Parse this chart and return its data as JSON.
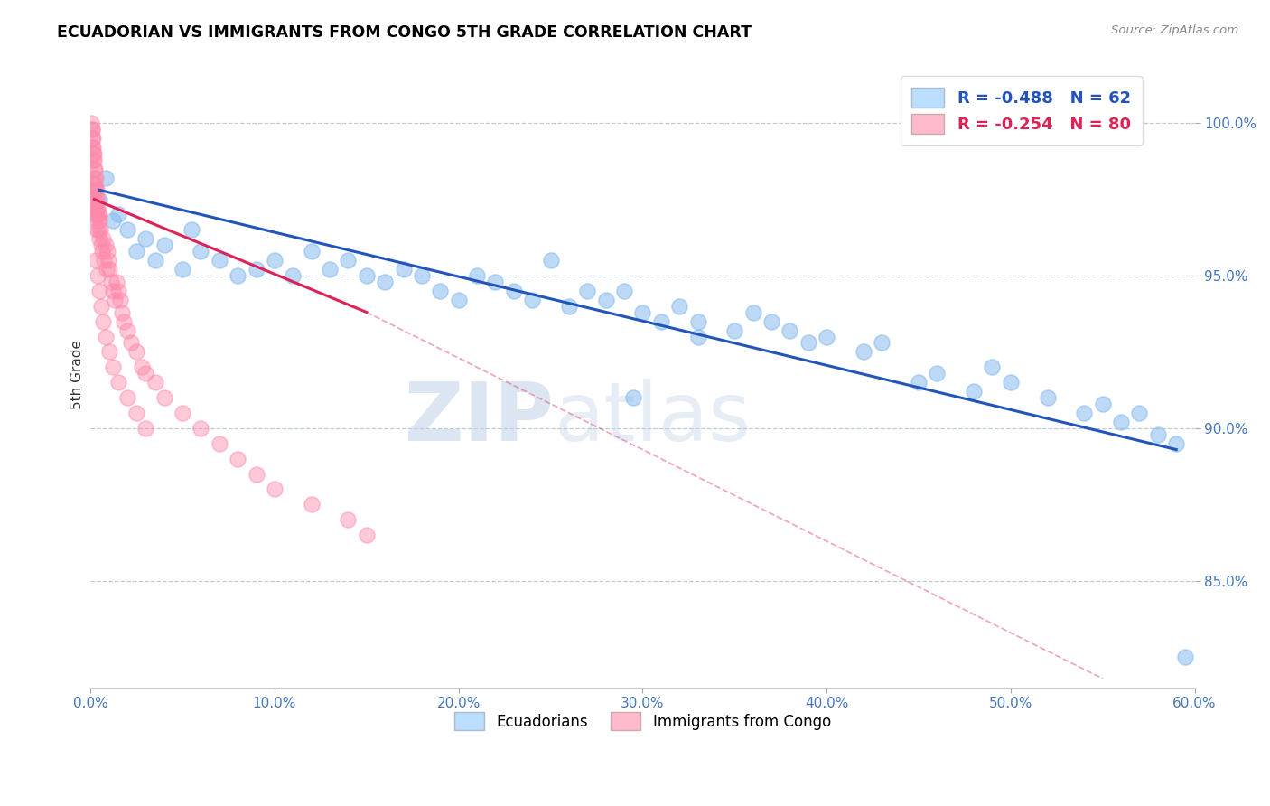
{
  "title": "ECUADORIAN VS IMMIGRANTS FROM CONGO 5TH GRADE CORRELATION CHART",
  "source": "Source: ZipAtlas.com",
  "ylabel": "5th Grade",
  "xlim": [
    0.0,
    60.0
  ],
  "ylim": [
    81.5,
    102.0
  ],
  "xtick_vals": [
    0.0,
    10.0,
    20.0,
    30.0,
    40.0,
    50.0,
    60.0
  ],
  "ytick_vals": [
    85.0,
    90.0,
    95.0,
    100.0
  ],
  "blue_R": -0.488,
  "blue_N": 62,
  "pink_R": -0.254,
  "pink_N": 80,
  "blue_scatter_color": "#88bbee",
  "pink_scatter_color": "#ff88aa",
  "blue_line_color": "#2255bb",
  "pink_line_color": "#dd2255",
  "axis_color": "#4477bb",
  "grid_color": "#bbccdd",
  "watermark_color": "#c8dcf0",
  "watermark_text": "ZIPatlas",
  "legend_blue_label": "Ecuadorians",
  "legend_pink_label": "Immigrants from Congo",
  "blue_line_x0": 0.5,
  "blue_line_y0": 97.8,
  "blue_line_x1": 59.0,
  "blue_line_y1": 89.3,
  "pink_line_solid_x0": 0.2,
  "pink_line_solid_y0": 97.5,
  "pink_line_solid_x1": 15.0,
  "pink_line_solid_y1": 93.8,
  "pink_line_dashed_x0": 15.0,
  "pink_line_dashed_y0": 93.8,
  "pink_line_dashed_x1": 55.0,
  "pink_line_dashed_y1": 81.8,
  "blue_scatter_x": [
    0.5,
    0.8,
    1.2,
    1.5,
    2.0,
    2.5,
    3.0,
    3.5,
    4.0,
    5.0,
    5.5,
    6.0,
    7.0,
    8.0,
    9.0,
    10.0,
    11.0,
    12.0,
    13.0,
    14.0,
    15.0,
    16.0,
    17.0,
    18.0,
    19.0,
    20.0,
    21.0,
    22.0,
    23.0,
    24.0,
    25.0,
    26.0,
    27.0,
    28.0,
    29.0,
    30.0,
    31.0,
    32.0,
    33.0,
    35.0,
    36.0,
    37.0,
    38.0,
    39.0,
    40.0,
    42.0,
    43.0,
    45.0,
    46.0,
    48.0,
    49.0,
    50.0,
    52.0,
    54.0,
    55.0,
    56.0,
    57.0,
    58.0,
    59.0,
    59.5,
    33.0,
    29.5
  ],
  "blue_scatter_y": [
    97.5,
    98.2,
    96.8,
    97.0,
    96.5,
    95.8,
    96.2,
    95.5,
    96.0,
    95.2,
    96.5,
    95.8,
    95.5,
    95.0,
    95.2,
    95.5,
    95.0,
    95.8,
    95.2,
    95.5,
    95.0,
    94.8,
    95.2,
    95.0,
    94.5,
    94.2,
    95.0,
    94.8,
    94.5,
    94.2,
    95.5,
    94.0,
    94.5,
    94.2,
    94.5,
    93.8,
    93.5,
    94.0,
    93.5,
    93.2,
    93.8,
    93.5,
    93.2,
    92.8,
    93.0,
    92.5,
    92.8,
    91.5,
    91.8,
    91.2,
    92.0,
    91.5,
    91.0,
    90.5,
    90.8,
    90.2,
    90.5,
    89.8,
    89.5,
    82.5,
    93.0,
    91.0
  ],
  "pink_scatter_x": [
    0.05,
    0.08,
    0.08,
    0.1,
    0.1,
    0.12,
    0.12,
    0.15,
    0.15,
    0.18,
    0.18,
    0.2,
    0.2,
    0.22,
    0.25,
    0.25,
    0.28,
    0.3,
    0.3,
    0.32,
    0.35,
    0.35,
    0.38,
    0.4,
    0.4,
    0.42,
    0.45,
    0.48,
    0.5,
    0.5,
    0.55,
    0.6,
    0.65,
    0.7,
    0.75,
    0.8,
    0.85,
    0.9,
    0.95,
    1.0,
    1.1,
    1.2,
    1.3,
    1.4,
    1.5,
    1.6,
    1.7,
    1.8,
    2.0,
    2.2,
    2.5,
    2.8,
    3.0,
    3.5,
    4.0,
    5.0,
    6.0,
    7.0,
    8.0,
    9.0,
    10.0,
    12.0,
    14.0,
    15.0,
    0.3,
    0.4,
    0.5,
    0.6,
    0.7,
    0.8,
    1.0,
    1.2,
    1.5,
    2.0,
    2.5,
    3.0,
    0.15,
    0.2,
    0.25,
    0.35
  ],
  "pink_scatter_y": [
    100.0,
    99.8,
    99.5,
    99.2,
    99.8,
    99.0,
    99.5,
    98.8,
    99.2,
    98.5,
    99.0,
    98.2,
    98.8,
    98.0,
    97.8,
    98.5,
    97.5,
    97.8,
    98.2,
    97.2,
    97.0,
    97.8,
    97.5,
    97.2,
    96.8,
    97.0,
    96.5,
    96.8,
    96.2,
    97.0,
    96.5,
    96.0,
    95.8,
    96.2,
    95.5,
    96.0,
    95.2,
    95.8,
    95.5,
    95.2,
    94.8,
    94.5,
    94.2,
    94.8,
    94.5,
    94.2,
    93.8,
    93.5,
    93.2,
    92.8,
    92.5,
    92.0,
    91.8,
    91.5,
    91.0,
    90.5,
    90.0,
    89.5,
    89.0,
    88.5,
    88.0,
    87.5,
    87.0,
    86.5,
    95.5,
    95.0,
    94.5,
    94.0,
    93.5,
    93.0,
    92.5,
    92.0,
    91.5,
    91.0,
    90.5,
    90.0,
    98.0,
    97.5,
    97.0,
    96.5
  ]
}
